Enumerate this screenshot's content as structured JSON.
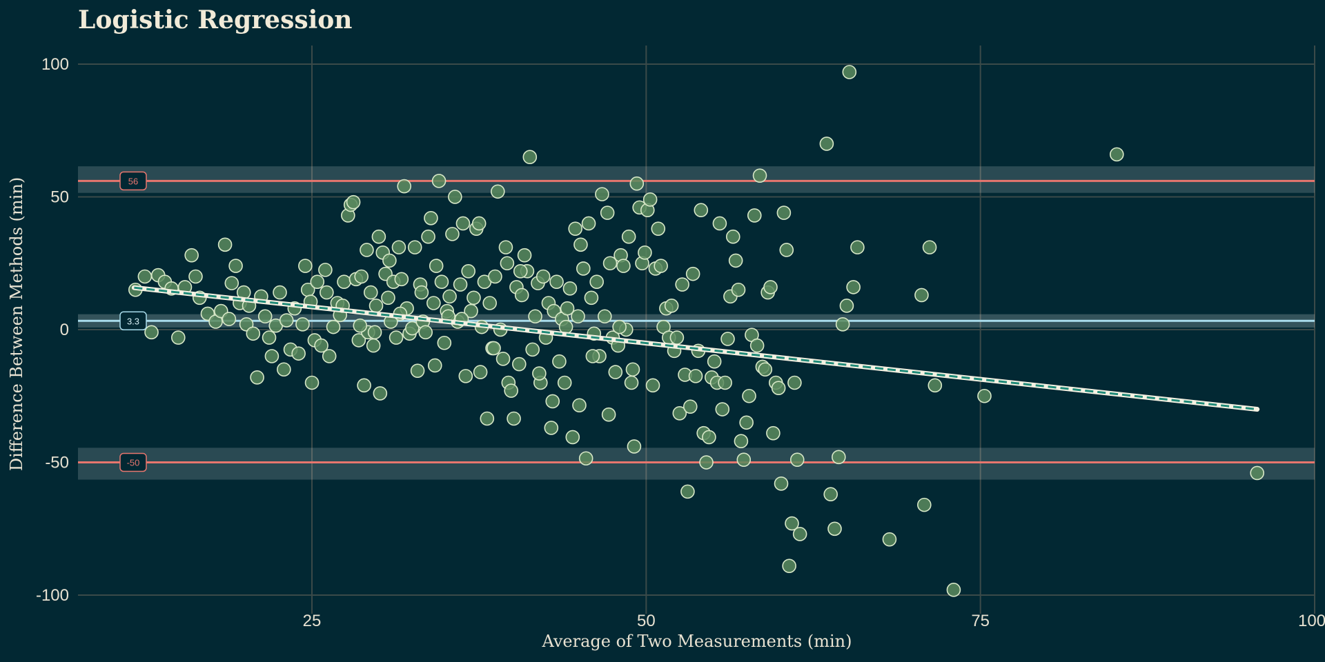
{
  "chart_data": {
    "type": "scatter",
    "title": "Logistic Regression",
    "xlabel": "Average of Two Measurements (min)",
    "ylabel": "Difference Between Methods (min)",
    "xlim": [
      7.5,
      100
    ],
    "ylim": [
      -107,
      107
    ],
    "x_ticks": [
      25,
      50,
      75,
      100
    ],
    "y_ticks": [
      -100,
      -50,
      0,
      50,
      100
    ],
    "x_tick_labels": [
      "25",
      "50",
      "75",
      "100"
    ],
    "y_tick_labels": [
      "-100",
      "-50",
      "0",
      "50",
      "100"
    ],
    "grid": true,
    "reference_lines": [
      {
        "name": "upper-limit",
        "value": 56.0,
        "label": "56",
        "band": [
          51.5,
          61.5
        ],
        "color": "#e8766e"
      },
      {
        "name": "mean-bias",
        "value": 3.3,
        "label": "3.3",
        "band": [
          0.8,
          5.8
        ],
        "color": "#a9dcec"
      },
      {
        "name": "lower-limit",
        "value": -50.0,
        "label": "-50",
        "band": [
          -56.5,
          -44.5
        ],
        "color": "#e8766e"
      }
    ],
    "trend_line": {
      "x": [
        11.7,
        95.7
      ],
      "y": [
        15.8,
        -30.0
      ]
    },
    "points": [
      [
        11.8,
        15.0
      ],
      [
        12.5,
        20.0
      ],
      [
        13.0,
        -1.0
      ],
      [
        13.5,
        20.5
      ],
      [
        14.0,
        18.0
      ],
      [
        14.5,
        15.5
      ],
      [
        15.0,
        -3.0
      ],
      [
        15.5,
        16.0
      ],
      [
        16.0,
        28.0
      ],
      [
        16.3,
        20.0
      ],
      [
        16.6,
        12.0
      ],
      [
        17.2,
        6.0
      ],
      [
        17.8,
        3.0
      ],
      [
        18.2,
        7.0
      ],
      [
        18.5,
        32.0
      ],
      [
        18.8,
        4.0
      ],
      [
        19.0,
        17.5
      ],
      [
        19.3,
        24.0
      ],
      [
        19.6,
        10.0
      ],
      [
        19.9,
        14.0
      ],
      [
        20.1,
        2.0
      ],
      [
        20.3,
        9.0
      ],
      [
        20.6,
        -1.5
      ],
      [
        20.9,
        -18.0
      ],
      [
        21.2,
        12.5
      ],
      [
        21.5,
        5.0
      ],
      [
        21.8,
        -3.0
      ],
      [
        22.0,
        -10.0
      ],
      [
        22.3,
        1.5
      ],
      [
        22.6,
        14.0
      ],
      [
        22.9,
        -15.0
      ],
      [
        23.1,
        3.5
      ],
      [
        23.4,
        -7.5
      ],
      [
        23.7,
        8.0
      ],
      [
        24.0,
        -9.0
      ],
      [
        24.3,
        2.0
      ],
      [
        24.5,
        24.0
      ],
      [
        24.7,
        15.0
      ],
      [
        24.9,
        10.5
      ],
      [
        25.0,
        -20.0
      ],
      [
        25.2,
        -4.0
      ],
      [
        25.4,
        18.0
      ],
      [
        25.7,
        -6.0
      ],
      [
        26.0,
        22.5
      ],
      [
        26.3,
        -10.0
      ],
      [
        26.6,
        1.0
      ],
      [
        26.9,
        10.0
      ],
      [
        27.1,
        5.5
      ],
      [
        27.4,
        18.0
      ],
      [
        27.7,
        43.0
      ],
      [
        27.9,
        47.0
      ],
      [
        28.1,
        48.0
      ],
      [
        28.3,
        19.0
      ],
      [
        28.5,
        -4.0
      ],
      [
        28.7,
        20.0
      ],
      [
        28.9,
        -21.0
      ],
      [
        29.1,
        30.0
      ],
      [
        29.2,
        -1.0
      ],
      [
        29.4,
        14.0
      ],
      [
        29.6,
        -6.0
      ],
      [
        29.8,
        9.0
      ],
      [
        30.0,
        35.0
      ],
      [
        30.1,
        -24.0
      ],
      [
        30.3,
        29.0
      ],
      [
        30.5,
        21.0
      ],
      [
        30.7,
        12.0
      ],
      [
        30.9,
        3.0
      ],
      [
        31.1,
        18.0
      ],
      [
        31.3,
        -3.0
      ],
      [
        31.5,
        31.0
      ],
      [
        31.7,
        19.0
      ],
      [
        31.9,
        54.0
      ],
      [
        32.1,
        8.0
      ],
      [
        32.3,
        -1.5
      ],
      [
        32.5,
        0.5
      ],
      [
        32.7,
        31.0
      ],
      [
        32.9,
        -15.5
      ],
      [
        33.1,
        17.0
      ],
      [
        33.3,
        3.0
      ],
      [
        33.5,
        -1.0
      ],
      [
        33.7,
        35.0
      ],
      [
        33.9,
        42.0
      ],
      [
        34.1,
        10.0
      ],
      [
        34.3,
        24.0
      ],
      [
        34.5,
        56.0
      ],
      [
        34.7,
        18.0
      ],
      [
        34.9,
        -5.0
      ],
      [
        35.1,
        7.0
      ],
      [
        35.3,
        12.5
      ],
      [
        35.5,
        36.0
      ],
      [
        35.7,
        50.0
      ],
      [
        35.9,
        3.0
      ],
      [
        36.1,
        17.0
      ],
      [
        36.3,
        40.0
      ],
      [
        36.5,
        -17.5
      ],
      [
        36.7,
        22.0
      ],
      [
        36.9,
        7.0
      ],
      [
        37.1,
        12.0
      ],
      [
        37.3,
        38.0
      ],
      [
        37.5,
        40.0
      ],
      [
        37.7,
        1.0
      ],
      [
        37.9,
        18.0
      ],
      [
        38.1,
        -33.5
      ],
      [
        38.3,
        10.0
      ],
      [
        38.5,
        -7.0
      ],
      [
        38.7,
        20.0
      ],
      [
        38.9,
        52.0
      ],
      [
        39.1,
        0.0
      ],
      [
        39.3,
        -11.0
      ],
      [
        39.5,
        31.0
      ],
      [
        39.7,
        -20.0
      ],
      [
        39.9,
        -23.0
      ],
      [
        40.1,
        -33.5
      ],
      [
        40.3,
        16.0
      ],
      [
        40.5,
        -13.0
      ],
      [
        40.7,
        13.0
      ],
      [
        40.9,
        28.0
      ],
      [
        41.1,
        22.0
      ],
      [
        41.3,
        65.0
      ],
      [
        41.5,
        -7.5
      ],
      [
        41.7,
        5.0
      ],
      [
        41.9,
        17.5
      ],
      [
        42.1,
        -20.0
      ],
      [
        42.3,
        20.0
      ],
      [
        42.5,
        -3.0
      ],
      [
        42.7,
        10.0
      ],
      [
        42.9,
        -37.0
      ],
      [
        43.1,
        7.0
      ],
      [
        43.3,
        18.0
      ],
      [
        43.5,
        -12.0
      ],
      [
        43.7,
        4.0
      ],
      [
        43.9,
        -20.0
      ],
      [
        44.1,
        8.0
      ],
      [
        44.3,
        15.5
      ],
      [
        44.5,
        -40.5
      ],
      [
        44.7,
        38.0
      ],
      [
        44.9,
        5.0
      ],
      [
        45.1,
        32.0
      ],
      [
        45.3,
        23.0
      ],
      [
        45.5,
        -48.5
      ],
      [
        45.7,
        40.0
      ],
      [
        45.9,
        12.0
      ],
      [
        46.1,
        -1.5
      ],
      [
        46.3,
        18.0
      ],
      [
        46.5,
        -10.0
      ],
      [
        46.7,
        51.0
      ],
      [
        46.9,
        5.0
      ],
      [
        47.1,
        44.0
      ],
      [
        47.3,
        25.0
      ],
      [
        47.5,
        -3.0
      ],
      [
        47.7,
        -16.0
      ],
      [
        47.9,
        -6.0
      ],
      [
        48.1,
        28.0
      ],
      [
        48.3,
        24.0
      ],
      [
        48.5,
        0.0
      ],
      [
        48.7,
        35.0
      ],
      [
        48.9,
        -20.0
      ],
      [
        49.1,
        -44.0
      ],
      [
        49.3,
        55.0
      ],
      [
        49.5,
        46.0
      ],
      [
        49.7,
        25.0
      ],
      [
        49.9,
        29.0
      ],
      [
        50.1,
        45.0
      ],
      [
        50.3,
        49.0
      ],
      [
        50.5,
        -21.0
      ],
      [
        50.7,
        23.0
      ],
      [
        50.9,
        38.0
      ],
      [
        51.1,
        24.0
      ],
      [
        51.3,
        1.0
      ],
      [
        51.5,
        8.0
      ],
      [
        51.7,
        -3.0
      ],
      [
        51.9,
        9.0
      ],
      [
        52.1,
        -8.0
      ],
      [
        52.3,
        -3.0
      ],
      [
        52.5,
        -31.5
      ],
      [
        52.7,
        17.0
      ],
      [
        52.9,
        -17.0
      ],
      [
        53.1,
        -61.0
      ],
      [
        53.3,
        -29.0
      ],
      [
        53.5,
        21.0
      ],
      [
        53.7,
        -17.5
      ],
      [
        53.9,
        -8.0
      ],
      [
        54.1,
        45.0
      ],
      [
        54.3,
        -39.0
      ],
      [
        54.5,
        -50.0
      ],
      [
        54.7,
        -40.5
      ],
      [
        54.9,
        -18.0
      ],
      [
        55.1,
        -12.0
      ],
      [
        55.3,
        -20.0
      ],
      [
        55.5,
        40.0
      ],
      [
        55.7,
        -30.0
      ],
      [
        55.9,
        -20.0
      ],
      [
        56.1,
        -3.5
      ],
      [
        56.3,
        12.5
      ],
      [
        56.5,
        35.0
      ],
      [
        56.7,
        26.0
      ],
      [
        56.9,
        15.0
      ],
      [
        57.1,
        -42.0
      ],
      [
        57.3,
        -49.0
      ],
      [
        57.5,
        -35.0
      ],
      [
        57.7,
        -25.0
      ],
      [
        57.9,
        -2.0
      ],
      [
        58.1,
        43.0
      ],
      [
        58.3,
        -6.0
      ],
      [
        58.5,
        58.0
      ],
      [
        58.7,
        -14.0
      ],
      [
        58.9,
        -15.0
      ],
      [
        59.1,
        14.0
      ],
      [
        59.3,
        16.0
      ],
      [
        59.5,
        -39.0
      ],
      [
        59.7,
        -20.0
      ],
      [
        59.9,
        -22.0
      ],
      [
        60.1,
        -58.0
      ],
      [
        60.3,
        44.0
      ],
      [
        60.5,
        30.0
      ],
      [
        60.7,
        -89.0
      ],
      [
        60.9,
        -73.0
      ],
      [
        61.1,
        -20.0
      ],
      [
        61.3,
        -49.0
      ],
      [
        61.5,
        -77.0
      ],
      [
        63.5,
        70.0
      ],
      [
        63.8,
        -62.0
      ],
      [
        64.1,
        -75.0
      ],
      [
        64.4,
        -48.0
      ],
      [
        64.7,
        2.0
      ],
      [
        65.0,
        9.0
      ],
      [
        65.2,
        97.0
      ],
      [
        65.5,
        16.0
      ],
      [
        65.8,
        31.0
      ],
      [
        68.2,
        -79.0
      ],
      [
        70.6,
        13.0
      ],
      [
        70.8,
        -66.0
      ],
      [
        71.2,
        31.0
      ],
      [
        71.6,
        -21.0
      ],
      [
        73.0,
        -98.0
      ],
      [
        75.3,
        -25.0
      ],
      [
        85.2,
        66.0
      ],
      [
        95.7,
        -54.0
      ],
      [
        26.1,
        14.0
      ],
      [
        27.3,
        9.0
      ],
      [
        28.6,
        1.5
      ],
      [
        29.7,
        -1.0
      ],
      [
        30.8,
        26.0
      ],
      [
        31.6,
        6.0
      ],
      [
        33.2,
        14.0
      ],
      [
        34.2,
        -13.5
      ],
      [
        35.2,
        5.0
      ],
      [
        36.2,
        4.0
      ],
      [
        37.6,
        -16.0
      ],
      [
        38.6,
        -7.0
      ],
      [
        39.6,
        25.0
      ],
      [
        40.6,
        22.0
      ],
      [
        42.0,
        -16.5
      ],
      [
        43.0,
        -27.0
      ],
      [
        44.0,
        1.0
      ],
      [
        45.0,
        -28.5
      ],
      [
        46.0,
        -10.0
      ],
      [
        47.2,
        -32.0
      ],
      [
        48.0,
        1.0
      ],
      [
        49.0,
        -15.0
      ]
    ]
  }
}
